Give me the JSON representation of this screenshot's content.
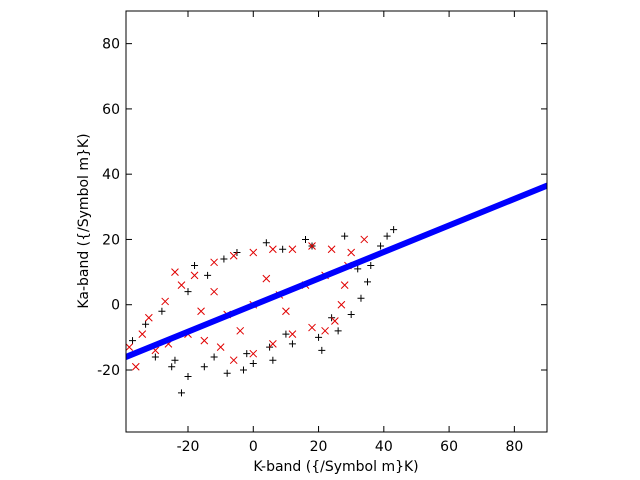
{
  "chart_data": {
    "type": "scatter",
    "title": "",
    "xlabel": "K-band ({/Symbol m}K)",
    "ylabel": "Ka-band ({/Symbol m}K)",
    "xlim": [
      -39,
      90
    ],
    "ylim": [
      -39,
      90
    ],
    "xticks": [
      -20,
      0,
      20,
      40,
      60,
      80
    ],
    "yticks": [
      -20,
      0,
      20,
      40,
      60,
      80
    ],
    "xtick_labels": [
      "-20",
      "0",
      "20",
      "40",
      "60",
      "80"
    ],
    "ytick_labels": [
      "-20",
      "0",
      "20",
      "40",
      "60",
      "80"
    ],
    "grid": false,
    "legend": "none",
    "series": [
      {
        "marker": "plus",
        "color": "#000000",
        "values": [
          [
            -22,
            -27
          ],
          [
            -20,
            -22
          ],
          [
            -24,
            -17
          ],
          [
            -15,
            -19
          ],
          [
            -8,
            -21
          ],
          [
            -2,
            -15
          ],
          [
            5,
            -13
          ],
          [
            12,
            -12
          ],
          [
            20,
            -10
          ],
          [
            26,
            -8
          ],
          [
            30,
            -3
          ],
          [
            33,
            2
          ],
          [
            35,
            7
          ],
          [
            36,
            12
          ],
          [
            39,
            18
          ],
          [
            41,
            21
          ],
          [
            43,
            23
          ],
          [
            28,
            21
          ],
          [
            18,
            18
          ],
          [
            9,
            17
          ],
          [
            4,
            19
          ],
          [
            -5,
            16
          ],
          [
            -14,
            9
          ],
          [
            -20,
            4
          ],
          [
            -28,
            -2
          ],
          [
            -33,
            -6
          ],
          [
            -37,
            -11
          ],
          [
            -30,
            -16
          ],
          [
            -25,
            -19
          ],
          [
            -12,
            -16
          ],
          [
            0,
            -18
          ],
          [
            10,
            -9
          ],
          [
            24,
            -4
          ],
          [
            32,
            11
          ],
          [
            -3,
            -20
          ],
          [
            16,
            20
          ],
          [
            21,
            -14
          ],
          [
            -18,
            12
          ],
          [
            6,
            -17
          ],
          [
            -9,
            14
          ]
        ]
      },
      {
        "marker": "cross",
        "color": "#e00000",
        "values": [
          [
            -36,
            -19
          ],
          [
            -38,
            -13
          ],
          [
            -34,
            -9
          ],
          [
            -32,
            -4
          ],
          [
            -27,
            1
          ],
          [
            -22,
            6
          ],
          [
            -24,
            10
          ],
          [
            -18,
            9
          ],
          [
            -12,
            13
          ],
          [
            -6,
            15
          ],
          [
            0,
            16
          ],
          [
            6,
            17
          ],
          [
            12,
            17
          ],
          [
            18,
            18
          ],
          [
            24,
            17
          ],
          [
            30,
            16
          ],
          [
            34,
            20
          ],
          [
            29,
            12
          ],
          [
            28,
            6
          ],
          [
            27,
            0
          ],
          [
            25,
            -5
          ],
          [
            22,
            -8
          ],
          [
            18,
            -7
          ],
          [
            12,
            -9
          ],
          [
            6,
            -12
          ],
          [
            0,
            -15
          ],
          [
            -6,
            -17
          ],
          [
            -10,
            -13
          ],
          [
            -15,
            -11
          ],
          [
            -20,
            -9
          ],
          [
            -26,
            -12
          ],
          [
            -30,
            -14
          ],
          [
            -16,
            -2
          ],
          [
            -8,
            -3
          ],
          [
            0,
            0
          ],
          [
            8,
            3
          ],
          [
            16,
            6
          ],
          [
            22,
            9
          ],
          [
            -12,
            4
          ],
          [
            4,
            8
          ],
          [
            10,
            -2
          ],
          [
            -4,
            -8
          ]
        ]
      },
      {
        "name": "",
        "marker": "line",
        "color": "#0000ff",
        "values": [
          [
            -39,
            -16
          ],
          [
            90,
            36.5
          ]
        ]
      }
    ]
  }
}
